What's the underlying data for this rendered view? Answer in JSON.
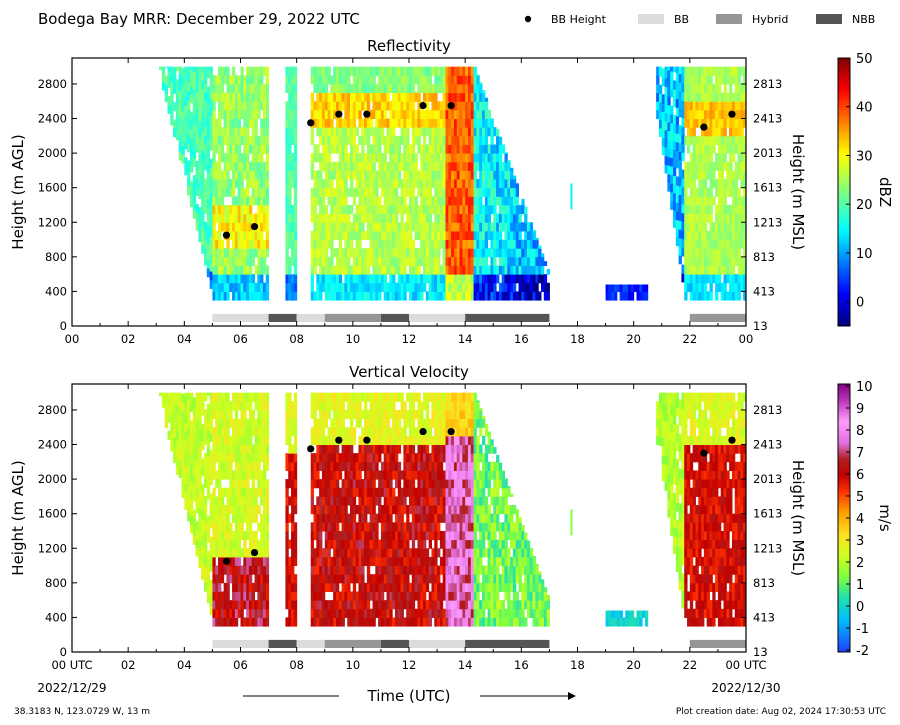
{
  "figure": {
    "title": "Bodega Bay MRR:  December 29, 2022 UTC",
    "footer_left": "38.3183 N, 123.0729 W, 13 m",
    "footer_right": "Plot creation date: Aug 02, 2024 17:30:53 UTC",
    "xlabel": "Time (UTC)",
    "date_start": "2022/12/29",
    "date_end": "2022/12/30"
  },
  "legend": [
    {
      "label": "BB Height",
      "marker": "dot",
      "color": "#000000"
    },
    {
      "label": "BB",
      "marker": "box",
      "color": "#dcdcdc"
    },
    {
      "label": "Hybrid",
      "marker": "box",
      "color": "#969696"
    },
    {
      "label": "NBB",
      "marker": "box",
      "color": "#555555"
    }
  ],
  "chart_data": [
    {
      "type": "heatmap",
      "title": "Reflectivity",
      "ylabel": "Height (m AGL)",
      "ylabel_right": "Height (m MSL)",
      "colorbar_label": "dBZ",
      "colorbar_ticks": [
        "50",
        "40",
        "30",
        "20",
        "10",
        "0"
      ],
      "ylim": [
        0,
        3100
      ],
      "xlim": [
        0,
        24
      ],
      "x_ticks": [
        "00",
        "02",
        "04",
        "06",
        "08",
        "10",
        "12",
        "14",
        "16",
        "18",
        "20",
        "22",
        "00"
      ],
      "y_ticks": [
        "0",
        "400",
        "800",
        "1200",
        "1600",
        "2000",
        "2400",
        "2800"
      ],
      "y_ticks_right": [
        "13",
        "413",
        "813",
        "1213",
        "1613",
        "2013",
        "2413",
        "2813"
      ],
      "bb_height": [
        {
          "x": 5.5,
          "y": 1050
        },
        {
          "x": 6.5,
          "y": 1150
        },
        {
          "x": 8.5,
          "y": 2350
        },
        {
          "x": 9.5,
          "y": 2450
        },
        {
          "x": 10.5,
          "y": 2450
        },
        {
          "x": 12.5,
          "y": 2550
        },
        {
          "x": 13.5,
          "y": 2550
        },
        {
          "x": 22.5,
          "y": 2300
        },
        {
          "x": 23.5,
          "y": 2450
        }
      ],
      "bb_classification": [
        {
          "start": 5,
          "end": 7,
          "class": "BB"
        },
        {
          "start": 7,
          "end": 8,
          "class": "NBB"
        },
        {
          "start": 8,
          "end": 9,
          "class": "BB"
        },
        {
          "start": 9,
          "end": 11,
          "class": "Hybrid"
        },
        {
          "start": 11,
          "end": 12,
          "class": "NBB"
        },
        {
          "start": 12,
          "end": 14,
          "class": "BB"
        },
        {
          "start": 14,
          "end": 17,
          "class": "NBB"
        },
        {
          "start": 22,
          "end": 24,
          "class": "Hybrid"
        }
      ]
    },
    {
      "type": "heatmap",
      "title": "Vertical Velocity",
      "ylabel": "Height (m AGL)",
      "ylabel_right": "Height (m MSL)",
      "colorbar_label": "m/s",
      "colorbar_ticks": [
        "10",
        "9",
        "8",
        "7",
        "6",
        "5",
        "4",
        "3",
        "2",
        "1",
        "0",
        "-1",
        "-2"
      ],
      "ylim": [
        0,
        3100
      ],
      "xlim": [
        0,
        24
      ],
      "x_ticks": [
        "00 UTC",
        "02",
        "04",
        "06",
        "08",
        "10",
        "12",
        "14",
        "16",
        "18",
        "20",
        "22",
        "00 UTC"
      ],
      "y_ticks": [
        "0",
        "400",
        "800",
        "1200",
        "1600",
        "2000",
        "2400",
        "2800"
      ],
      "y_ticks_right": [
        "13",
        "413",
        "813",
        "1213",
        "1613",
        "2013",
        "2413",
        "2813"
      ],
      "bb_height": [
        {
          "x": 5.5,
          "y": 1050
        },
        {
          "x": 6.5,
          "y": 1150
        },
        {
          "x": 8.5,
          "y": 2350
        },
        {
          "x": 9.5,
          "y": 2450
        },
        {
          "x": 10.5,
          "y": 2450
        },
        {
          "x": 12.5,
          "y": 2550
        },
        {
          "x": 13.5,
          "y": 2550
        },
        {
          "x": 22.5,
          "y": 2300
        },
        {
          "x": 23.5,
          "y": 2450
        }
      ],
      "bb_classification": [
        {
          "start": 5,
          "end": 7,
          "class": "BB"
        },
        {
          "start": 7,
          "end": 8,
          "class": "NBB"
        },
        {
          "start": 8,
          "end": 9,
          "class": "BB"
        },
        {
          "start": 9,
          "end": 11,
          "class": "Hybrid"
        },
        {
          "start": 11,
          "end": 12,
          "class": "NBB"
        },
        {
          "start": 12,
          "end": 14,
          "class": "BB"
        },
        {
          "start": 14,
          "end": 17,
          "class": "NBB"
        },
        {
          "start": 22,
          "end": 24,
          "class": "Hybrid"
        }
      ]
    }
  ],
  "colors": {
    "BB": "#dcdcdc",
    "Hybrid": "#969696",
    "NBB": "#555555",
    "bb_height": "#000000"
  }
}
